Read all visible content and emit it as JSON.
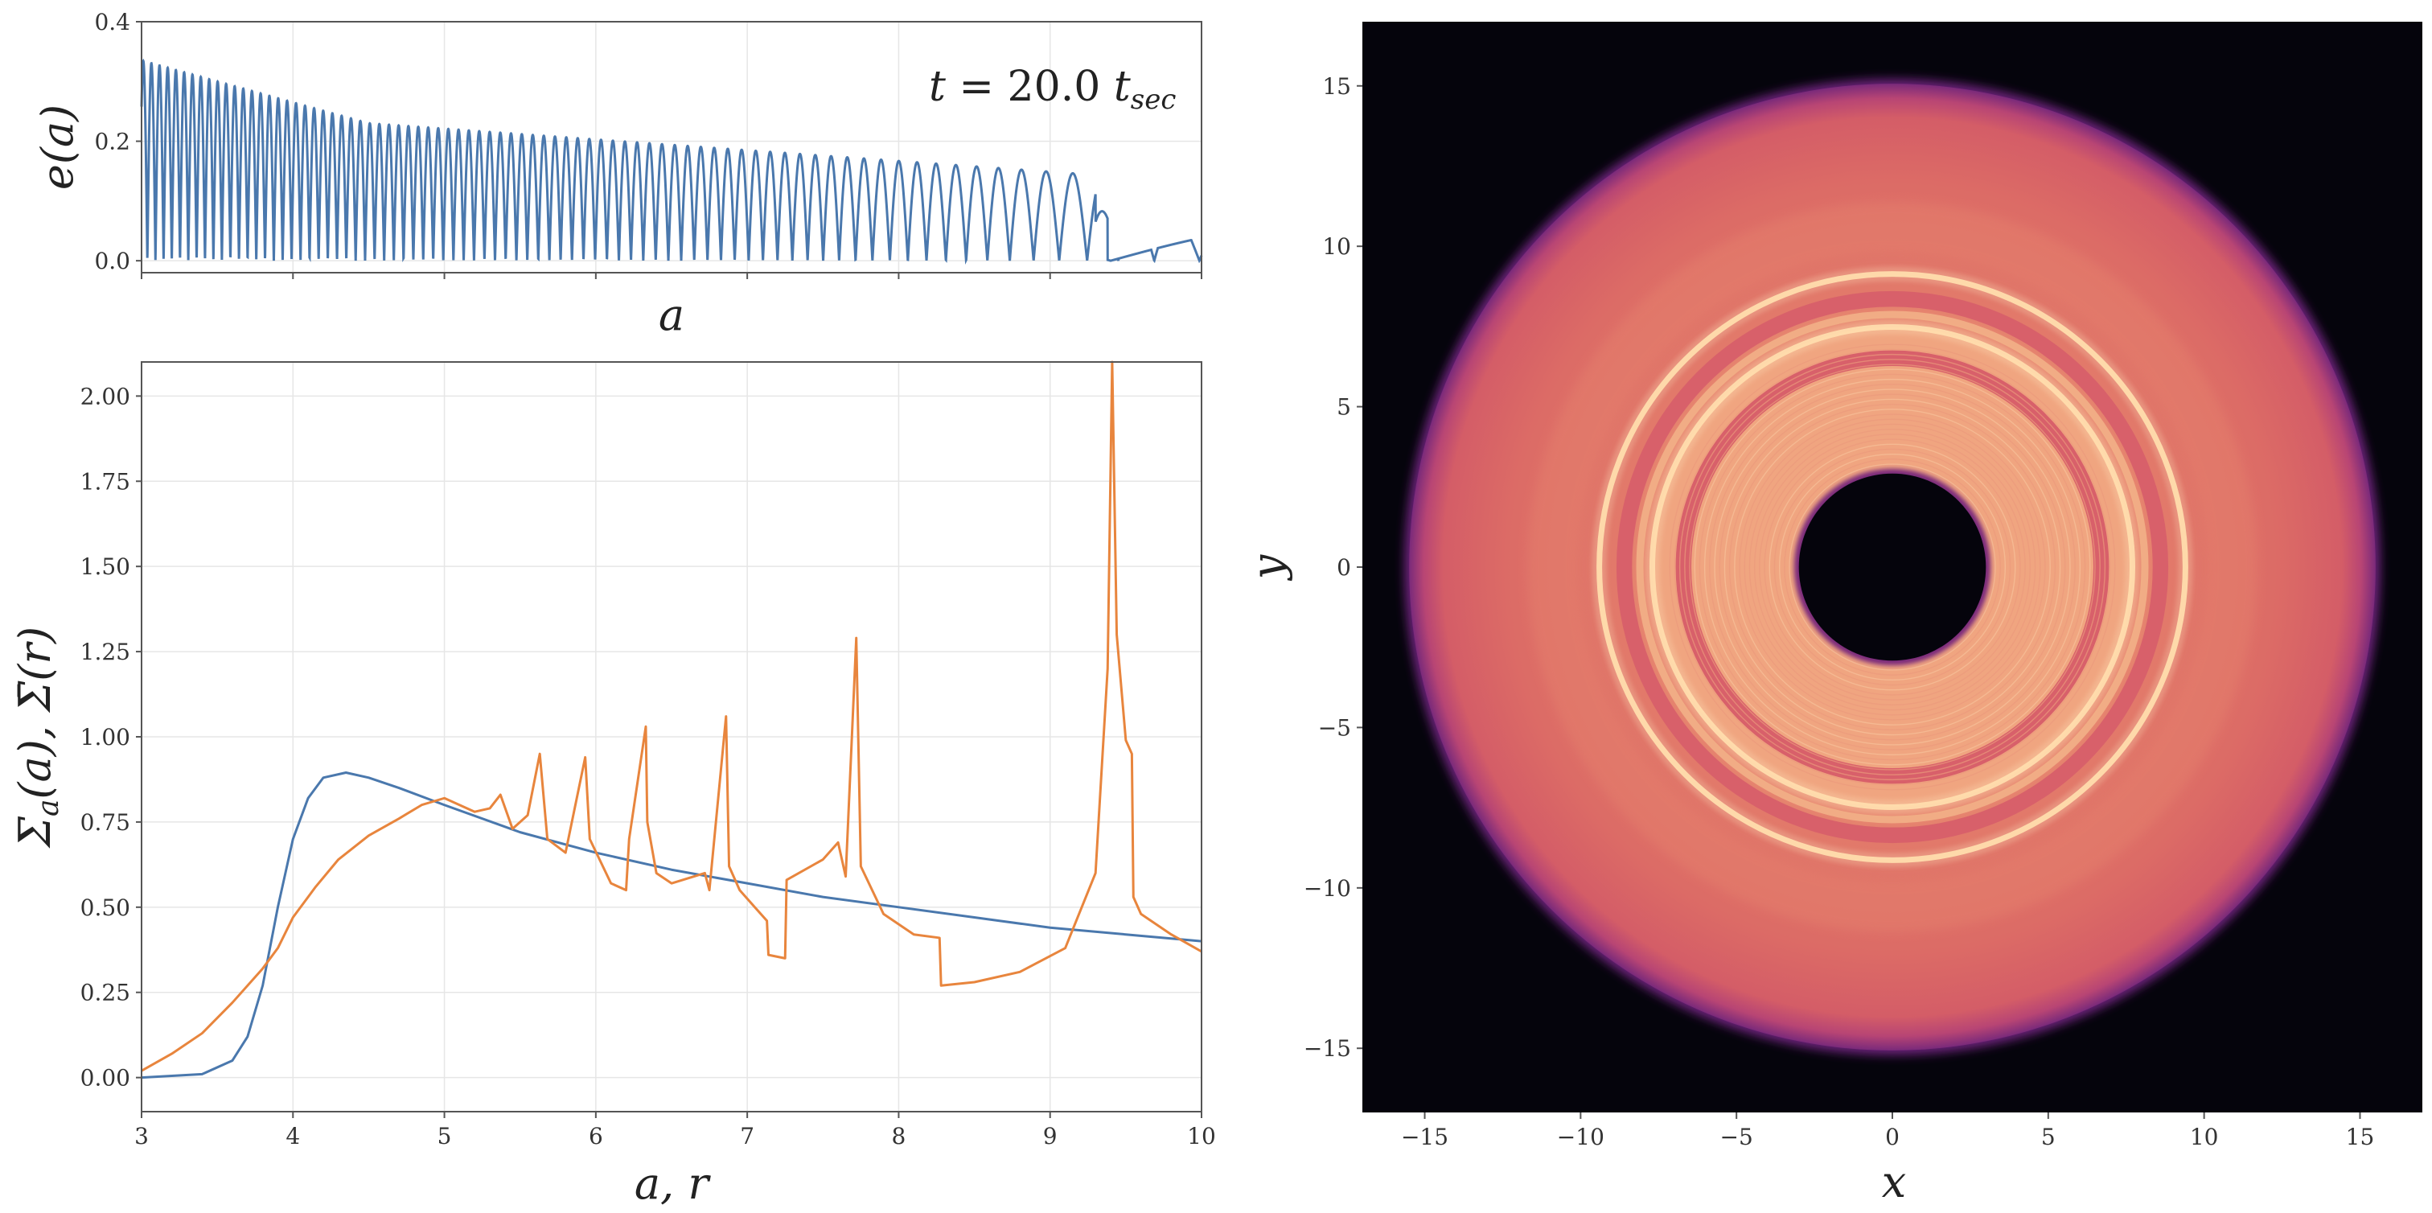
{
  "chart_data": [
    {
      "type": "line",
      "panel": "top-left",
      "annotation": "t = 20.0 t_sec",
      "xlabel": "a",
      "ylabel": "e(a)",
      "xlim": [
        3,
        10
      ],
      "ylim": [
        -0.02,
        0.4
      ],
      "yticks": [
        "0.0",
        "0.2",
        "0.4"
      ],
      "grid": true,
      "series": [
        {
          "color": "#4a78ad",
          "description_points": {
            "arch_peaks_a": [
              4.5,
              4.75,
              5.0,
              5.3,
              5.6,
              5.95,
              6.35,
              6.85,
              7.5,
              8.6,
              9.9
            ],
            "arch_peak_e": [
              0.22,
              0.21,
              0.2,
              0.19,
              0.18,
              0.17,
              0.155,
              0.14,
              0.135,
              0.12,
              0.058
            ],
            "envelope_start_e": 0.335
          }
        }
      ]
    },
    {
      "type": "line",
      "panel": "bottom-left",
      "xlabel": "a, r",
      "ylabel": "Σa(a), Σ̄(r)",
      "xlim": [
        3,
        10
      ],
      "ylim": [
        -0.1,
        2.1
      ],
      "xticks": [
        "3",
        "4",
        "5",
        "6",
        "7",
        "8",
        "9",
        "10"
      ],
      "yticks": [
        "0.00",
        "0.25",
        "0.50",
        "0.75",
        "1.00",
        "1.25",
        "1.50",
        "1.75",
        "2.00"
      ],
      "grid": true,
      "series": [
        {
          "color": "#4a78ad",
          "x": [
            3.0,
            3.4,
            3.6,
            3.7,
            3.8,
            3.9,
            4.0,
            4.1,
            4.2,
            4.35,
            4.5,
            4.7,
            5.0,
            5.5,
            6.0,
            6.5,
            7.0,
            7.5,
            8.0,
            8.5,
            9.0,
            9.5,
            10.0
          ],
          "y": [
            0.0,
            0.01,
            0.05,
            0.12,
            0.27,
            0.5,
            0.7,
            0.82,
            0.88,
            0.895,
            0.88,
            0.85,
            0.8,
            0.72,
            0.66,
            0.61,
            0.57,
            0.53,
            0.5,
            0.47,
            0.44,
            0.42,
            0.4
          ]
        },
        {
          "color": "#e8853d",
          "x": [
            3.0,
            3.2,
            3.4,
            3.6,
            3.8,
            3.9,
            4.0,
            4.15,
            4.3,
            4.5,
            4.7,
            4.85,
            5.0,
            5.1,
            5.2,
            5.3,
            5.37,
            5.45,
            5.55,
            5.63,
            5.68,
            5.8,
            5.93,
            5.96,
            6.1,
            6.2,
            6.22,
            6.33,
            6.34,
            6.4,
            6.5,
            6.72,
            6.75,
            6.86,
            6.88,
            6.95,
            7.05,
            7.13,
            7.14,
            7.25,
            7.26,
            7.5,
            7.6,
            7.65,
            7.72,
            7.75,
            7.9,
            8.1,
            8.27,
            8.28,
            8.5,
            8.8,
            9.1,
            9.3,
            9.38,
            9.41,
            9.44,
            9.5,
            9.54,
            9.55,
            9.6,
            9.8,
            10.0
          ],
          "y": [
            0.02,
            0.07,
            0.13,
            0.22,
            0.32,
            0.38,
            0.47,
            0.56,
            0.64,
            0.71,
            0.76,
            0.8,
            0.82,
            0.8,
            0.78,
            0.79,
            0.83,
            0.73,
            0.77,
            0.95,
            0.7,
            0.66,
            0.94,
            0.7,
            0.57,
            0.55,
            0.7,
            1.03,
            0.75,
            0.6,
            0.57,
            0.6,
            0.55,
            1.06,
            0.62,
            0.55,
            0.5,
            0.46,
            0.36,
            0.35,
            0.58,
            0.64,
            0.69,
            0.59,
            1.29,
            0.62,
            0.48,
            0.42,
            0.41,
            0.27,
            0.28,
            0.31,
            0.38,
            0.6,
            1.2,
            2.1,
            1.3,
            0.99,
            0.95,
            0.53,
            0.48,
            0.42,
            0.37
          ]
        }
      ]
    },
    {
      "type": "heatmap",
      "panel": "right",
      "xlabel": "x",
      "ylabel": "y",
      "xlim": [
        -17,
        17
      ],
      "ylim": [
        -17,
        17
      ],
      "xticks": [
        "−15",
        "−10",
        "−5",
        "0",
        "5",
        "10",
        "15"
      ],
      "yticks": [
        "−15",
        "−10",
        "−5",
        "0",
        "5",
        "10",
        "15"
      ],
      "background": "#05040c",
      "disk": {
        "inner_radius": 3.0,
        "outer_radius": 15.5,
        "base_color": "#dc6a66",
        "inner_region_color": "#f1ad86",
        "bright_rings_radii": [
          7.7,
          9.4
        ],
        "dark_gap_radii": [
          6.7,
          8.6
        ]
      }
    }
  ]
}
